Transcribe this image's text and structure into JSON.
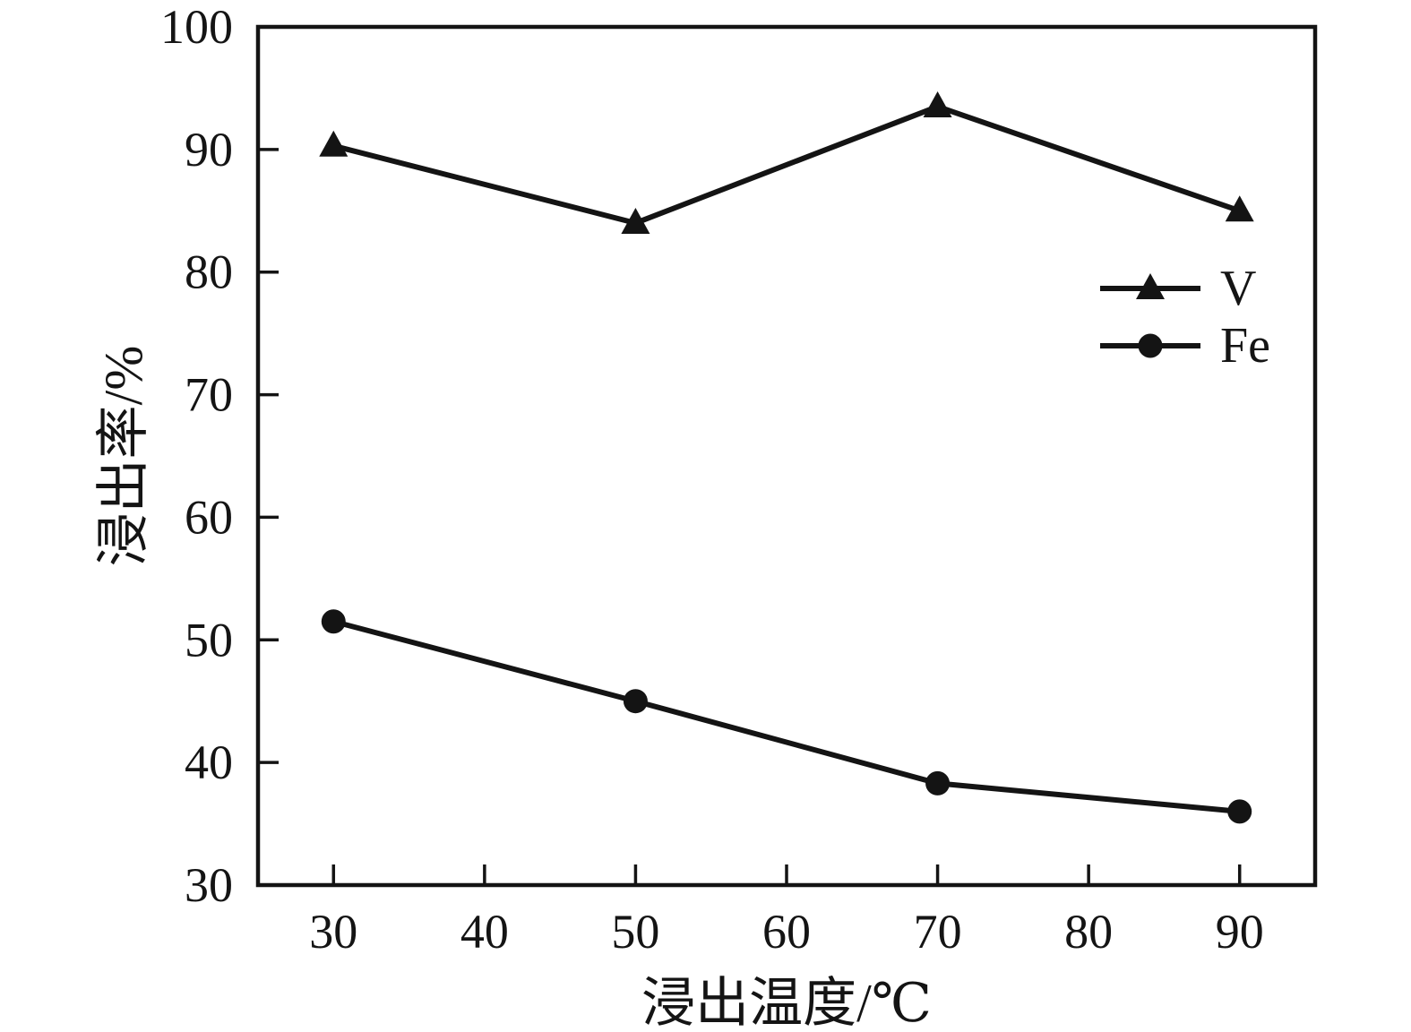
{
  "figure": {
    "background": "#ffffff",
    "ink_color": "#141414"
  },
  "chart_data": {
    "type": "line",
    "title": "",
    "xlabel": "浸出温度/℃",
    "ylabel": "浸出率/%",
    "x": [
      30,
      50,
      70,
      90
    ],
    "series": [
      {
        "name": "V",
        "marker": "triangle",
        "color": "#141414",
        "values": [
          90.3,
          84.0,
          93.5,
          85.0
        ]
      },
      {
        "name": "Fe",
        "marker": "circle",
        "color": "#141414",
        "values": [
          51.5,
          45.0,
          38.3,
          36.0
        ]
      }
    ],
    "xlim": [
      25,
      95
    ],
    "ylim": [
      30,
      100
    ],
    "xticks": [
      30,
      40,
      50,
      60,
      70,
      80,
      90
    ],
    "yticks": [
      30,
      40,
      50,
      60,
      70,
      80,
      90,
      100
    ],
    "grid": false,
    "frame": "full-box",
    "tick_direction": "in",
    "legend": {
      "position": "inside-right",
      "entries": [
        "V",
        "Fe"
      ]
    }
  }
}
